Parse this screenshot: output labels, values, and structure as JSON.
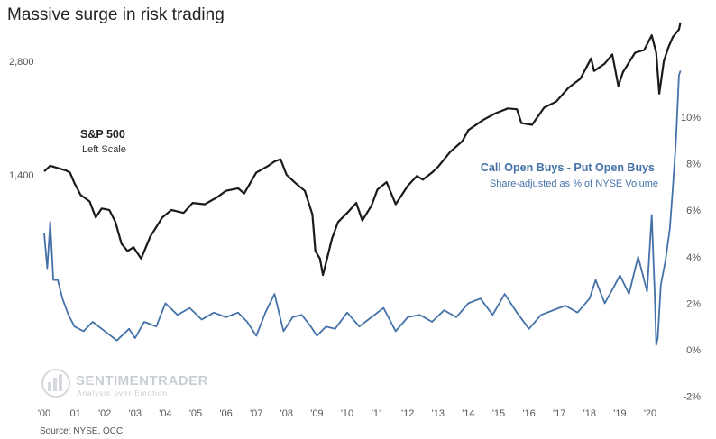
{
  "chart_data": {
    "type": "line",
    "title": "Massive surge in risk trading",
    "x_ticks": [
      "'00",
      "'01",
      "'02",
      "'03",
      "'04",
      "'05",
      "'06",
      "'07",
      "'08",
      "'09",
      "'10",
      "'11",
      "'12",
      "'13",
      "'14",
      "'15",
      "'16",
      "'17",
      "'18",
      "'19",
      "'20"
    ],
    "left_axis": {
      "scale": "log",
      "ticks": [
        1400,
        2800
      ],
      "tick_labels": [
        "1,400",
        "2,800"
      ]
    },
    "right_axis": {
      "ticks": [
        -2,
        0,
        2,
        4,
        6,
        8,
        10
      ],
      "tick_labels": [
        "-2%",
        "0%",
        "2%",
        "4%",
        "6%",
        "8%",
        "10%"
      ],
      "ylim": [
        -2,
        12
      ]
    },
    "series": [
      {
        "name": "S&P 500",
        "subtitle": "Left Scale",
        "axis": "left",
        "color": "#1a1a1a",
        "x": [
          2000.0,
          2000.2,
          2000.45,
          2000.7,
          2000.85,
          2001.0,
          2001.2,
          2001.5,
          2001.7,
          2001.9,
          2002.15,
          2002.35,
          2002.55,
          2002.75,
          2002.95,
          2003.2,
          2003.5,
          2003.9,
          2004.2,
          2004.6,
          2004.9,
          2005.3,
          2005.7,
          2006.0,
          2006.4,
          2006.6,
          2007.0,
          2007.4,
          2007.6,
          2007.8,
          2008.0,
          2008.3,
          2008.6,
          2008.85,
          2008.95,
          2009.1,
          2009.2,
          2009.35,
          2009.5,
          2009.7,
          2010.0,
          2010.3,
          2010.5,
          2010.8,
          2011.0,
          2011.3,
          2011.6,
          2011.75,
          2012.0,
          2012.3,
          2012.5,
          2012.8,
          2013.0,
          2013.4,
          2013.8,
          2014.0,
          2014.5,
          2014.9,
          2015.3,
          2015.6,
          2015.75,
          2016.1,
          2016.5,
          2016.9,
          2017.3,
          2017.7,
          2018.05,
          2018.15,
          2018.5,
          2018.75,
          2018.95,
          2019.1,
          2019.5,
          2019.8,
          2020.05,
          2020.2,
          2020.3,
          2020.45,
          2020.6,
          2020.75,
          2020.95,
          2021.0
        ],
        "values": [
          1430,
          1480,
          1460,
          1440,
          1420,
          1330,
          1240,
          1190,
          1080,
          1140,
          1130,
          1050,
          920,
          880,
          900,
          840,
          960,
          1080,
          1130,
          1110,
          1180,
          1170,
          1220,
          1270,
          1290,
          1250,
          1420,
          1480,
          1520,
          1540,
          1400,
          1330,
          1270,
          1100,
          880,
          840,
          760,
          850,
          950,
          1050,
          1110,
          1180,
          1060,
          1160,
          1280,
          1340,
          1170,
          1220,
          1310,
          1390,
          1360,
          1420,
          1470,
          1610,
          1720,
          1840,
          1960,
          2040,
          2100,
          2090,
          1920,
          1900,
          2110,
          2190,
          2380,
          2520,
          2850,
          2640,
          2760,
          2920,
          2410,
          2620,
          2950,
          3000,
          3280,
          2950,
          2300,
          2800,
          3050,
          3250,
          3400,
          3550
        ]
      },
      {
        "name": "Call Open Buys - Put Open Buys",
        "subtitle": "Share-adjusted as % of NYSE Volume",
        "axis": "right",
        "color": "#4472a8",
        "x": [
          2000.0,
          2000.1,
          2000.2,
          2000.3,
          2000.45,
          2000.6,
          2000.8,
          2001.0,
          2001.3,
          2001.6,
          2002.0,
          2002.4,
          2002.8,
          2003.0,
          2003.3,
          2003.7,
          2004.0,
          2004.4,
          2004.8,
          2005.2,
          2005.6,
          2006.0,
          2006.4,
          2006.7,
          2007.0,
          2007.3,
          2007.6,
          2007.9,
          2008.2,
          2008.5,
          2008.8,
          2009.0,
          2009.3,
          2009.6,
          2010.0,
          2010.4,
          2010.8,
          2011.2,
          2011.6,
          2012.0,
          2012.4,
          2012.8,
          2013.2,
          2013.6,
          2014.0,
          2014.4,
          2014.8,
          2015.2,
          2015.6,
          2016.0,
          2016.4,
          2016.8,
          2017.2,
          2017.6,
          2018.0,
          2018.2,
          2018.5,
          2018.8,
          2019.0,
          2019.3,
          2019.6,
          2019.9,
          2020.05,
          2020.15,
          2020.2,
          2020.25,
          2020.35,
          2020.5,
          2020.65,
          2020.75,
          2020.85,
          2020.95,
          2021.0
        ],
        "values": [
          5.0,
          3.5,
          5.5,
          3.0,
          3.0,
          2.2,
          1.5,
          1.0,
          0.8,
          1.2,
          0.8,
          0.4,
          0.9,
          0.5,
          1.2,
          1.0,
          2.0,
          1.5,
          1.8,
          1.3,
          1.6,
          1.4,
          1.6,
          1.2,
          0.6,
          1.6,
          2.4,
          0.8,
          1.4,
          1.5,
          1.0,
          0.6,
          1.0,
          0.9,
          1.6,
          1.0,
          1.4,
          1.8,
          0.8,
          1.4,
          1.5,
          1.2,
          1.7,
          1.4,
          2.0,
          2.2,
          1.5,
          2.4,
          1.6,
          0.9,
          1.5,
          1.7,
          1.9,
          1.6,
          2.2,
          3.0,
          2.0,
          2.7,
          3.2,
          2.4,
          4.0,
          2.5,
          5.8,
          2.5,
          0.2,
          0.5,
          2.8,
          3.8,
          5.2,
          7.0,
          9.0,
          11.8,
          12.0
        ]
      }
    ],
    "source": "Source: NYSE, OCC",
    "watermark": {
      "line1": "SENTIMENTRADER",
      "line2": "Analysis over Emotion"
    },
    "grid": false,
    "legend": "inline annotations"
  }
}
